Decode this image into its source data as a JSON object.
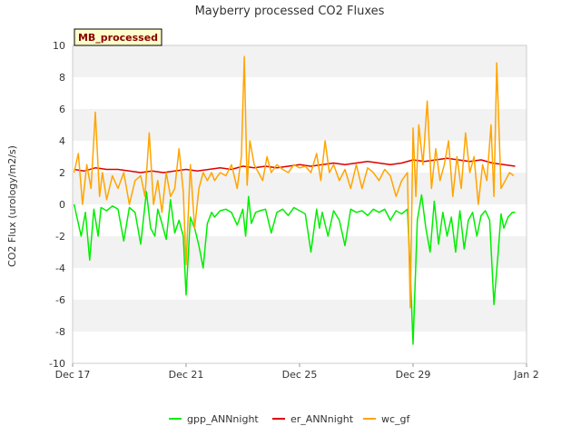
{
  "chart_data": {
    "type": "line",
    "title": "Mayberry processed CO2 Fluxes",
    "ylabel": "CO2 Flux (urology/m2/s)",
    "xlabel": "",
    "badge": "MB_processed",
    "ylim": [
      -10,
      10
    ],
    "yticks": [
      -10,
      -8,
      -6,
      -4,
      -2,
      0,
      2,
      4,
      6,
      8,
      10
    ],
    "xlim": [
      0,
      16
    ],
    "xticks": [
      {
        "value": 0,
        "label": "Dec 17"
      },
      {
        "value": 4,
        "label": "Dec 21"
      },
      {
        "value": 8,
        "label": "Dec 25"
      },
      {
        "value": 12,
        "label": "Dec 29"
      },
      {
        "value": 16,
        "label": "Jan 2"
      }
    ],
    "series": [
      {
        "name": "gpp_ANNnight",
        "color": "#00ee00",
        "x": [
          0.05,
          0.3,
          0.45,
          0.6,
          0.75,
          0.9,
          1.0,
          1.2,
          1.4,
          1.6,
          1.8,
          2.0,
          2.2,
          2.4,
          2.6,
          2.75,
          2.9,
          3.0,
          3.15,
          3.3,
          3.45,
          3.6,
          3.75,
          3.9,
          4.0,
          4.15,
          4.3,
          4.45,
          4.6,
          4.75,
          4.9,
          5.0,
          5.2,
          5.4,
          5.6,
          5.8,
          6.0,
          6.1,
          6.2,
          6.3,
          6.45,
          6.6,
          6.8,
          7.0,
          7.2,
          7.4,
          7.6,
          7.8,
          8.0,
          8.2,
          8.4,
          8.6,
          8.7,
          8.8,
          9.0,
          9.2,
          9.4,
          9.6,
          9.8,
          10.0,
          10.2,
          10.4,
          10.6,
          10.8,
          11.0,
          11.2,
          11.4,
          11.6,
          11.8,
          11.9,
          12.0,
          12.15,
          12.3,
          12.45,
          12.6,
          12.75,
          12.9,
          13.05,
          13.2,
          13.35,
          13.5,
          13.65,
          13.8,
          13.95,
          14.1,
          14.25,
          14.4,
          14.55,
          14.7,
          14.85,
          15.0,
          15.1,
          15.2,
          15.35,
          15.5,
          15.6
        ],
        "values": [
          0.0,
          -2.0,
          -0.5,
          -3.5,
          -0.3,
          -2.0,
          -0.2,
          -0.4,
          -0.1,
          -0.3,
          -2.3,
          -0.2,
          -0.5,
          -2.5,
          0.8,
          -1.5,
          -2.0,
          -0.3,
          -1.2,
          -2.2,
          0.3,
          -1.8,
          -1.0,
          -2.0,
          -5.7,
          -0.8,
          -1.5,
          -2.6,
          -4.0,
          -1.2,
          -0.5,
          -0.8,
          -0.4,
          -0.3,
          -0.5,
          -1.3,
          -0.3,
          -2.0,
          0.5,
          -1.2,
          -0.5,
          -0.4,
          -0.3,
          -1.8,
          -0.5,
          -0.3,
          -0.7,
          -0.2,
          -0.4,
          -0.6,
          -3.0,
          -0.3,
          -1.5,
          -0.5,
          -2.0,
          -0.4,
          -1.0,
          -2.6,
          -0.3,
          -0.5,
          -0.4,
          -0.7,
          -0.3,
          -0.5,
          -0.3,
          -1.0,
          -0.4,
          -0.6,
          -0.3,
          -4.2,
          -8.8,
          -1.0,
          0.6,
          -1.5,
          -3.0,
          0.2,
          -2.5,
          -0.5,
          -2.0,
          -0.8,
          -3.0,
          -0.4,
          -2.8,
          -1.0,
          -0.5,
          -2.0,
          -0.7,
          -0.4,
          -1.0,
          -6.3,
          -3.0,
          -0.6,
          -1.5,
          -0.8,
          -0.5,
          -0.5
        ]
      },
      {
        "name": "er_ANNnight",
        "color": "#dd0000",
        "x": [
          0.05,
          0.4,
          0.8,
          1.2,
          1.6,
          2.0,
          2.4,
          2.8,
          3.2,
          3.6,
          4.0,
          4.4,
          4.8,
          5.2,
          5.6,
          6.0,
          6.4,
          6.8,
          7.2,
          7.6,
          8.0,
          8.4,
          8.8,
          9.2,
          9.6,
          10.0,
          10.4,
          10.8,
          11.2,
          11.6,
          12.0,
          12.4,
          12.8,
          13.2,
          13.6,
          14.0,
          14.4,
          14.8,
          15.2,
          15.6
        ],
        "values": [
          2.2,
          2.1,
          2.3,
          2.2,
          2.2,
          2.1,
          2.0,
          2.1,
          2.0,
          2.1,
          2.2,
          2.1,
          2.2,
          2.3,
          2.2,
          2.4,
          2.3,
          2.4,
          2.3,
          2.4,
          2.5,
          2.4,
          2.5,
          2.6,
          2.5,
          2.6,
          2.7,
          2.6,
          2.5,
          2.6,
          2.8,
          2.7,
          2.8,
          2.9,
          2.8,
          2.7,
          2.8,
          2.6,
          2.5,
          2.4
        ]
      },
      {
        "name": "wc_gf",
        "color": "#ffa500",
        "x": [
          0.05,
          0.2,
          0.35,
          0.5,
          0.65,
          0.8,
          0.95,
          1.05,
          1.2,
          1.4,
          1.6,
          1.8,
          2.0,
          2.2,
          2.4,
          2.55,
          2.7,
          2.85,
          3.0,
          3.15,
          3.3,
          3.45,
          3.6,
          3.75,
          3.9,
          4.0,
          4.15,
          4.3,
          4.45,
          4.6,
          4.75,
          4.9,
          5.0,
          5.2,
          5.4,
          5.6,
          5.8,
          5.95,
          6.05,
          6.15,
          6.25,
          6.4,
          6.55,
          6.7,
          6.85,
          7.0,
          7.2,
          7.4,
          7.6,
          7.8,
          8.0,
          8.2,
          8.4,
          8.6,
          8.75,
          8.9,
          9.05,
          9.2,
          9.4,
          9.6,
          9.8,
          10.0,
          10.2,
          10.4,
          10.6,
          10.8,
          11.0,
          11.2,
          11.4,
          11.6,
          11.8,
          11.9,
          12.0,
          12.1,
          12.2,
          12.35,
          12.5,
          12.65,
          12.8,
          12.95,
          13.1,
          13.25,
          13.4,
          13.55,
          13.7,
          13.85,
          14.0,
          14.15,
          14.3,
          14.45,
          14.6,
          14.75,
          14.85,
          14.95,
          15.1,
          15.25,
          15.4,
          15.55
        ],
        "values": [
          2.0,
          3.2,
          0.0,
          2.5,
          1.0,
          5.8,
          0.5,
          2.0,
          0.3,
          1.8,
          1.0,
          2.0,
          0.0,
          1.5,
          1.8,
          0.5,
          4.5,
          0.0,
          1.5,
          -0.5,
          2.0,
          0.5,
          1.0,
          3.5,
          0.8,
          -3.8,
          2.5,
          -1.5,
          1.0,
          2.0,
          1.5,
          2.0,
          1.5,
          2.0,
          1.8,
          2.5,
          1.0,
          3.0,
          9.3,
          1.2,
          4.0,
          2.5,
          2.0,
          1.5,
          3.0,
          2.0,
          2.5,
          2.2,
          2.0,
          2.5,
          2.3,
          2.4,
          2.0,
          3.2,
          1.5,
          4.0,
          2.0,
          2.5,
          1.5,
          2.2,
          1.0,
          2.5,
          1.0,
          2.3,
          2.0,
          1.5,
          2.2,
          1.8,
          0.5,
          1.5,
          2.0,
          -6.5,
          4.8,
          0.5,
          5.0,
          2.5,
          6.5,
          1.0,
          3.5,
          1.5,
          2.5,
          4.0,
          0.5,
          3.0,
          1.0,
          4.5,
          2.0,
          3.0,
          0.0,
          2.5,
          1.5,
          5.0,
          0.5,
          8.9,
          1.0,
          1.5,
          2.0,
          1.8
        ]
      }
    ],
    "grid": "horizontal bands",
    "legend_position": "bottom-center"
  }
}
